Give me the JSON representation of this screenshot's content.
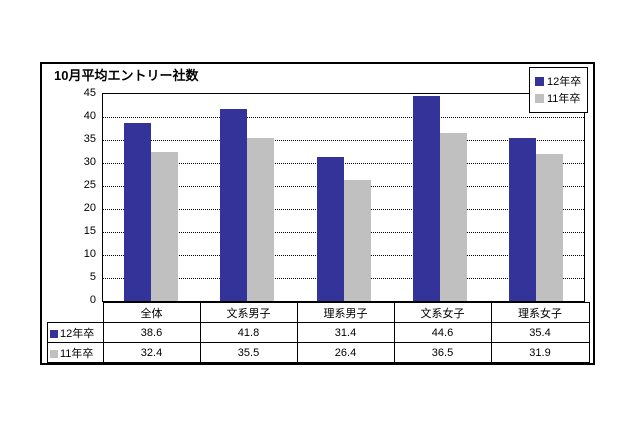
{
  "chart": {
    "title": "10月平均エントリー社数"
  },
  "colors": {
    "series1": "#333399",
    "series2": "#C0C0C0",
    "border": "#000000",
    "background": "#FFFFFF"
  },
  "chart_data": {
    "type": "bar",
    "title": "10月平均エントリー社数",
    "categories": [
      "全体",
      "文系男子",
      "理系男子",
      "文系女子",
      "理系女子"
    ],
    "series": [
      {
        "name": "12年卒",
        "color": "#333399",
        "values": [
          38.6,
          41.8,
          31.4,
          44.6,
          35.4
        ]
      },
      {
        "name": "11年卒",
        "color": "#C0C0C0",
        "values": [
          32.4,
          35.5,
          26.4,
          36.5,
          31.9
        ]
      }
    ],
    "ylim": [
      0,
      45
    ],
    "yticks": [
      0,
      5,
      10,
      15,
      20,
      25,
      30,
      35,
      40,
      45
    ],
    "grid": "horizontal-dotted",
    "legend_position": "top-right",
    "data_table_shown": true,
    "value_decimals": 1
  }
}
